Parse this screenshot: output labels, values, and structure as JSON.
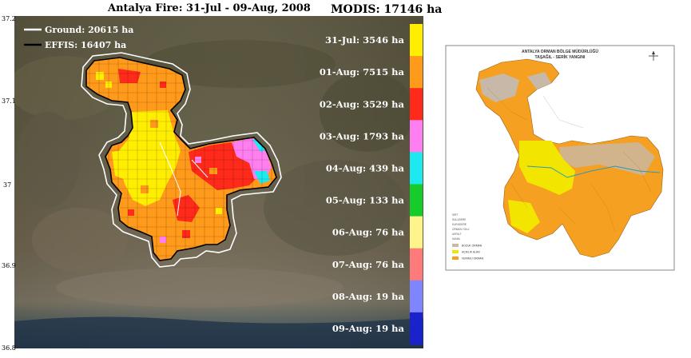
{
  "main_map": {
    "title": "Antalya Fire: 31-Jul - 09-Aug, 2008",
    "modis_label": "MODIS: 17146 ha",
    "y_ticks": [
      "37.2",
      "37.1",
      "37",
      "36.9",
      "36.8"
    ],
    "legend": [
      {
        "label": "Ground: 20615 ha",
        "color": "#ffffff"
      },
      {
        "label": "EFFIS:   16407 ha",
        "color": "#000000"
      }
    ],
    "daily_burn": [
      {
        "label": "31-Jul: 3546 ha",
        "color": "#ffee00"
      },
      {
        "label": "01-Aug: 7515 ha",
        "color": "#ff9a1a"
      },
      {
        "label": "02-Aug: 3529 ha",
        "color": "#ff2a1a"
      },
      {
        "label": "03-Aug: 1793 ha",
        "color": "#ff7ff0"
      },
      {
        "label": "04-Aug: 439 ha",
        "color": "#1ee8f0"
      },
      {
        "label": "05-Aug: 133 ha",
        "color": "#15cc2a"
      },
      {
        "label": "06-Aug: 76 ha",
        "color": "#fff48a"
      },
      {
        "label": "07-Aug: 76 ha",
        "color": "#ff7a7a"
      },
      {
        "label": "08-Aug: 19 ha",
        "color": "#7f85ff"
      },
      {
        "label": "09-Aug: 19 ha",
        "color": "#1a22cc"
      }
    ]
  },
  "inset_map": {
    "title_line1": "ANTALYA ORMAN BÖLGE MÜDÜRLÜĞÜ",
    "title_line2": "TAŞAĞIL - SERİK YANGINI",
    "line_legend": [
      "SIRT",
      "SULUDERE",
      "KURUDERE",
      "ORMAN YOLU",
      "ASFALT",
      "KANAL"
    ],
    "area_legend": [
      {
        "label": "BOZUK ORMAN",
        "color": "#c8b8a8"
      },
      {
        "label": "AÇIKLIK ALAN",
        "color": "#f2e600"
      },
      {
        "label": "VERIMLİ ORMAN",
        "color": "#f5a020"
      }
    ]
  }
}
